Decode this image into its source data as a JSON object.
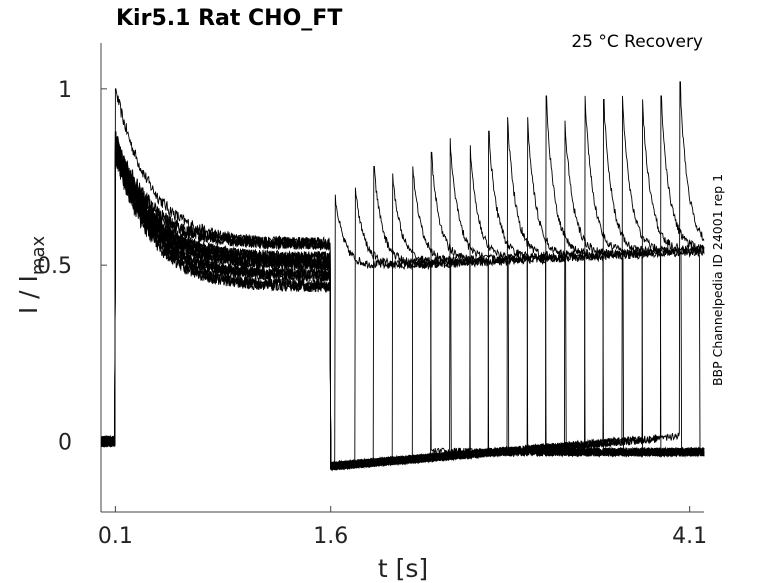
{
  "chart_data": {
    "type": "line",
    "title": "Kir5.1  Rat  CHO_FT",
    "condition": "25 °C  Recovery",
    "xlabel": "t [s]",
    "ylabel_main": "I / I",
    "ylabel_sub": "max",
    "side_label": "BBP Channelpedia ID 24001 rep 1",
    "xlim": [
      0.0,
      4.2
    ],
    "ylim": [
      -0.2,
      1.13
    ],
    "xticks": [
      {
        "v": 0.1,
        "label": "0.1"
      },
      {
        "v": 1.6,
        "label": "1.6"
      },
      {
        "v": 4.1,
        "label": "4.1"
      }
    ],
    "yticks": [
      {
        "v": 0,
        "label": "0"
      },
      {
        "v": 0.5,
        "label": "0.5"
      },
      {
        "v": 1,
        "label": "1"
      }
    ],
    "line_color": "#000000",
    "grid": false,
    "protocol": {
      "baseline": 0.0,
      "first_pulse_start": 0.1,
      "first_pulse_end": 1.6,
      "first_pulse_peak": 1.0,
      "first_pulse_steady_state": [
        0.56,
        0.52,
        0.5,
        0.47,
        0.44
      ],
      "after_first_pulse_level": -0.07,
      "recovery_pulse_starts": [
        1.63,
        1.77,
        1.9,
        2.03,
        2.17,
        2.3,
        2.43,
        2.57,
        2.7,
        2.83,
        2.97,
        3.1,
        3.23,
        3.37,
        3.5,
        3.63,
        3.77,
        3.9,
        4.03
      ],
      "recovery_pulse_peaks": [
        0.7,
        0.72,
        0.78,
        0.76,
        0.78,
        0.82,
        0.86,
        0.84,
        0.88,
        0.92,
        0.92,
        0.98,
        0.91,
        0.98,
        0.97,
        0.98,
        0.97,
        0.98,
        1.02
      ],
      "recovery_pulse_duration": 0.67,
      "recovery_pulse_steady_state": 0.5,
      "trace_end": 4.2
    }
  }
}
